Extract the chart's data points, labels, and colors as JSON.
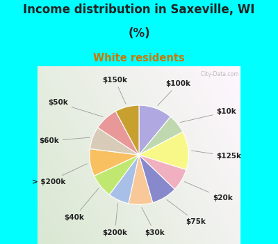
{
  "title_line1": "Income distribution in Saxeville, WI",
  "title_line2": "(%)",
  "subtitle": "White residents",
  "title_color": "#222222",
  "subtitle_color": "#cc7700",
  "watermark": "  City-Data.com",
  "slices": [
    {
      "label": "$100k",
      "value": 10.5,
      "color": "#b0a8e0"
    },
    {
      "label": "$10k",
      "value": 6.0,
      "color": "#c0d8b0"
    },
    {
      "label": "$125k",
      "value": 12.0,
      "color": "#f8f888"
    },
    {
      "label": "$20k",
      "value": 7.0,
      "color": "#f0b0c0"
    },
    {
      "label": "$75k",
      "value": 8.0,
      "color": "#8888cc"
    },
    {
      "label": "$30k",
      "value": 7.5,
      "color": "#f8c898"
    },
    {
      "label": "$200k",
      "value": 6.5,
      "color": "#a8c0e8"
    },
    {
      "label": "$40k",
      "value": 7.5,
      "color": "#c0e870"
    },
    {
      "label": "> $200k",
      "value": 8.5,
      "color": "#f8c060"
    },
    {
      "label": "$60k",
      "value": 7.0,
      "color": "#d8ccb8"
    },
    {
      "label": "$50k",
      "value": 7.5,
      "color": "#e89898"
    },
    {
      "label": "$150k",
      "value": 7.5,
      "color": "#c8a030"
    }
  ],
  "label_fontsize": 7.5,
  "title_fontsize": 12,
  "subtitle_fontsize": 10.5
}
